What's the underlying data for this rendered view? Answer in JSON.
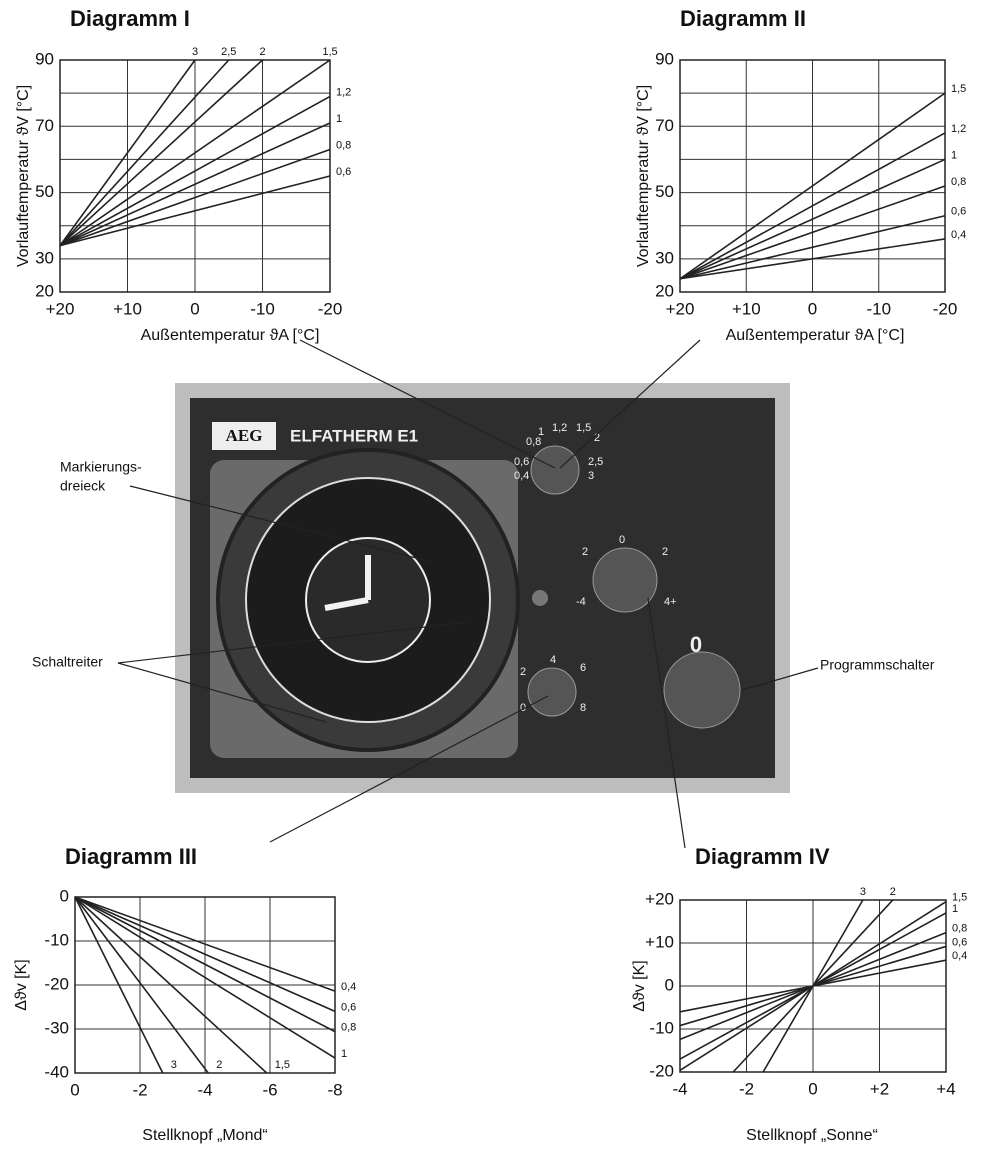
{
  "chart_data": [
    {
      "type": "line",
      "title": "Diagramm I",
      "xlabel": "Außentemperatur ϑA [°C]",
      "ylabel": "Vorlauftemperatur ϑV [°C]",
      "xlim": [
        20,
        -20
      ],
      "ylim": [
        20,
        90
      ],
      "xticks": [
        {
          "value": 20,
          "label": "+20"
        },
        {
          "value": 10,
          "label": "+10"
        },
        0,
        -10,
        -20
      ],
      "yticks": [
        20,
        30,
        50,
        70,
        90
      ],
      "yminor": [
        40,
        60,
        80
      ],
      "grid": true,
      "series": [
        {
          "name": "3",
          "color": "#222",
          "x": [
            20,
            0
          ],
          "values": [
            34,
            90
          ]
        },
        {
          "name": "2,5",
          "color": "#222",
          "x": [
            20,
            -5
          ],
          "values": [
            34,
            90
          ]
        },
        {
          "name": "2",
          "color": "#222",
          "x": [
            20,
            -10
          ],
          "values": [
            34,
            90
          ]
        },
        {
          "name": "1,5",
          "color": "#222",
          "x": [
            20,
            -20
          ],
          "values": [
            34,
            90
          ]
        },
        {
          "name": "1,2",
          "color": "#222",
          "x": [
            20,
            -20
          ],
          "values": [
            34,
            79
          ]
        },
        {
          "name": "1",
          "color": "#222",
          "x": [
            20,
            -20
          ],
          "values": [
            34,
            71
          ]
        },
        {
          "name": "0,8",
          "color": "#222",
          "x": [
            20,
            -20
          ],
          "values": [
            34,
            63
          ]
        },
        {
          "name": "0,6",
          "color": "#222",
          "x": [
            20,
            -20
          ],
          "values": [
            34,
            55
          ]
        }
      ]
    },
    {
      "type": "line",
      "title": "Diagramm II",
      "xlabel": "Außentemperatur ϑA [°C]",
      "ylabel": "Vorlauftemperatur ϑV [°C]",
      "xlim": [
        20,
        -20
      ],
      "ylim": [
        20,
        90
      ],
      "xticks": [
        {
          "value": 20,
          "label": "+20"
        },
        {
          "value": 10,
          "label": "+10"
        },
        0,
        -10,
        -20
      ],
      "yticks": [
        20,
        30,
        50,
        70,
        90
      ],
      "yminor": [
        40,
        60,
        80
      ],
      "grid": true,
      "series": [
        {
          "name": "1,5",
          "color": "#222",
          "x": [
            20,
            -20
          ],
          "values": [
            24,
            80
          ]
        },
        {
          "name": "1,2",
          "color": "#222",
          "x": [
            20,
            -20
          ],
          "values": [
            24,
            68
          ]
        },
        {
          "name": "1",
          "color": "#222",
          "x": [
            20,
            -20
          ],
          "values": [
            24,
            60
          ]
        },
        {
          "name": "0,8",
          "color": "#222",
          "x": [
            20,
            -20
          ],
          "values": [
            24,
            52
          ]
        },
        {
          "name": "0,6",
          "color": "#222",
          "x": [
            20,
            -20
          ],
          "values": [
            24,
            43
          ]
        },
        {
          "name": "0,4",
          "color": "#222",
          "x": [
            20,
            -20
          ],
          "values": [
            24,
            36
          ]
        }
      ]
    },
    {
      "type": "line",
      "title": "Diagramm III",
      "xlabel": "Stellknopf „Mond“",
      "ylabel": "Δϑv [K]",
      "xlim": [
        0,
        -8
      ],
      "ylim": [
        -40,
        0
      ],
      "xticks": [
        0,
        -2,
        -4,
        -6,
        -8
      ],
      "yticks": [
        0,
        -10,
        -20,
        -30,
        -40
      ],
      "grid": true,
      "series": [
        {
          "name": "3",
          "color": "#222",
          "x": [
            0,
            -2.7
          ],
          "values": [
            0,
            -40
          ]
        },
        {
          "name": "2",
          "color": "#222",
          "x": [
            0,
            -4.1
          ],
          "values": [
            0,
            -40
          ]
        },
        {
          "name": "1,5",
          "color": "#222",
          "x": [
            0,
            -5.9
          ],
          "values": [
            0,
            -40
          ]
        },
        {
          "name": "1",
          "color": "#222",
          "x": [
            0,
            -8
          ],
          "values": [
            0,
            -36.6
          ]
        },
        {
          "name": "0,8",
          "color": "#222",
          "x": [
            0,
            -8
          ],
          "values": [
            0,
            -30.6
          ]
        },
        {
          "name": "0,6",
          "color": "#222",
          "x": [
            0,
            -8
          ],
          "values": [
            0,
            -26
          ]
        },
        {
          "name": "0,4",
          "color": "#222",
          "x": [
            0,
            -8
          ],
          "values": [
            0,
            -21.4
          ]
        }
      ]
    },
    {
      "type": "line",
      "title": "Diagramm IV",
      "xlabel": "Stellknopf „Sonne“",
      "ylabel": "Δϑv [K]",
      "xlim": [
        -4,
        4
      ],
      "ylim": [
        -20,
        20
      ],
      "xticks": [
        -4,
        -2,
        0,
        {
          "value": 2,
          "label": "+2"
        },
        {
          "value": 4,
          "label": "+4"
        }
      ],
      "yticks": [
        -20,
        -10,
        0,
        {
          "value": 10,
          "label": "+10"
        },
        {
          "value": 20,
          "label": "+20"
        }
      ],
      "grid": true,
      "series": [
        {
          "name": "3",
          "color": "#222",
          "x": [
            -1.5,
            1.5
          ],
          "values": [
            -20,
            20
          ]
        },
        {
          "name": "2",
          "color": "#222",
          "x": [
            -2.4,
            2.4
          ],
          "values": [
            -20,
            20
          ]
        },
        {
          "name": "1,5",
          "color": "#222",
          "x": [
            -4,
            4
          ],
          "values": [
            -19.6,
            19.6
          ]
        },
        {
          "name": "1",
          "color": "#222",
          "x": [
            -4,
            4
          ],
          "values": [
            -17,
            17
          ]
        },
        {
          "name": "0,8",
          "color": "#222",
          "x": [
            -4,
            4
          ],
          "values": [
            -12.4,
            12.4
          ]
        },
        {
          "name": "0,6",
          "color": "#222",
          "x": [
            -4,
            4
          ],
          "values": [
            -9.2,
            9.2
          ]
        },
        {
          "name": "0,4",
          "color": "#222",
          "x": [
            -4,
            4
          ],
          "values": [
            -6,
            6
          ]
        }
      ]
    }
  ],
  "device": {
    "brand": "AEG",
    "model": "ELFATHERM E1",
    "curve_knob": [
      "0,8",
      "1",
      "1,2",
      "1,5",
      "2",
      "0,6",
      "0,4",
      "2,5",
      "3"
    ],
    "sun_knob": [
      "0",
      "2",
      "2",
      "-4",
      "4+"
    ],
    "moon_knob": [
      "4",
      "2",
      "6",
      "0",
      "8"
    ],
    "program_switch": "0",
    "callouts": {
      "marker": [
        "Markierungs-",
        "dreieck"
      ],
      "rider": "Schaltreiter",
      "program": "Programmschalter"
    }
  }
}
